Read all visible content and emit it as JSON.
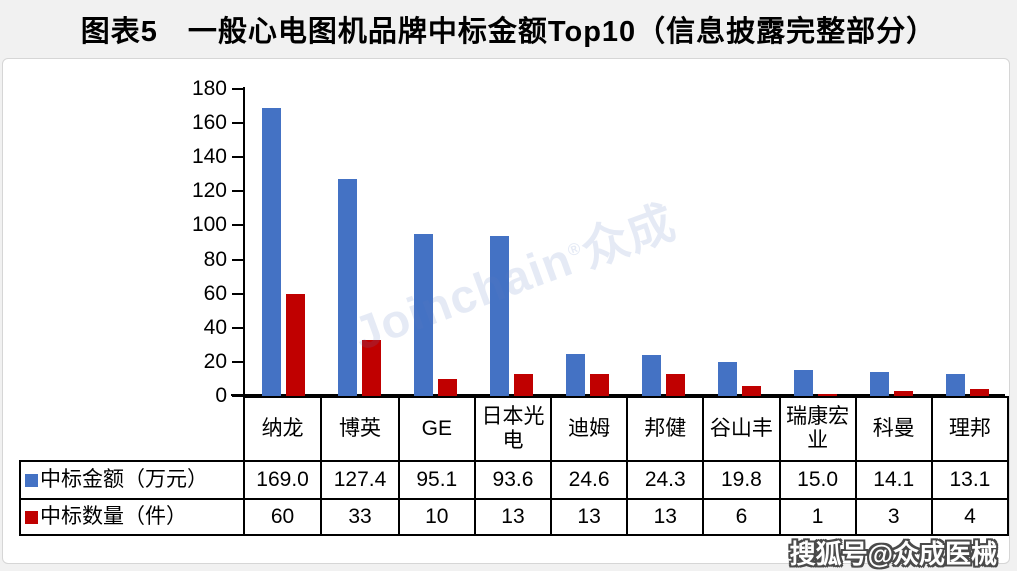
{
  "title": "图表5　一般心电图机品牌中标金额Top10（信息披露完整部分）",
  "colors": {
    "amount_series": "#4472C4",
    "count_series": "#C00000",
    "page_bg": "#F1F1F1",
    "card_bg": "#FFFFFF",
    "card_border": "#D6D6D6",
    "axis": "#000000",
    "table_border": "#000000",
    "watermark_blue": "rgba(93,126,190,0.16)"
  },
  "chart_data": {
    "type": "bar",
    "title": "图表5　一般心电图机品牌中标金额Top10（信息披露完整部分）",
    "categories": [
      "纳龙",
      "博英",
      "GE",
      "日本光电",
      "迪姆",
      "邦健",
      "谷山丰",
      "瑞康宏业",
      "科曼",
      "理邦"
    ],
    "series": [
      {
        "name": "中标金额（万元）",
        "color": "#4472C4",
        "decimals": 1,
        "values": [
          169.0,
          127.4,
          95.1,
          93.6,
          24.6,
          24.3,
          19.8,
          15.0,
          14.1,
          13.1
        ]
      },
      {
        "name": "中标数量（件）",
        "color": "#C00000",
        "decimals": 0,
        "values": [
          60,
          33,
          10,
          13,
          13,
          13,
          6,
          1,
          3,
          4
        ]
      }
    ],
    "xlabel": "",
    "ylabel": "",
    "ylim": [
      0,
      180
    ],
    "ytick_step": 20,
    "yticks": [
      0,
      20,
      40,
      60,
      80,
      100,
      120,
      140,
      160,
      180
    ],
    "grid": false,
    "legend_position": "table-left-column"
  },
  "watermarks": {
    "joinchain_latin": "Joinchain",
    "joinchain_reg": "®",
    "joinchain_cn": "众成",
    "sohu": "搜狐号@众成医械"
  }
}
